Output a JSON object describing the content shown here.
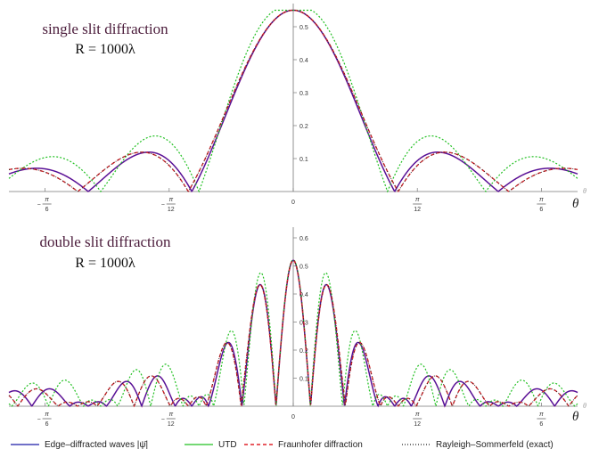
{
  "chart_data": [
    {
      "type": "line",
      "title": "single slit diffraction",
      "subtitle": "R = 1000λ",
      "xlabel": "θ",
      "xlabel_small": "θ",
      "x_ticks": [
        {
          "value": -0.5236,
          "num": "π",
          "den": "6",
          "neg": true
        },
        {
          "value": -0.2618,
          "num": "π",
          "den": "12",
          "neg": true
        },
        {
          "value": 0,
          "num": "0",
          "den": "",
          "neg": false
        },
        {
          "value": 0.2618,
          "num": "π",
          "den": "12",
          "neg": false
        },
        {
          "value": 0.5236,
          "num": "π",
          "den": "6",
          "neg": false
        }
      ],
      "y_ticks": [
        "0.1",
        "0.2",
        "0.3",
        "0.4",
        "0.5"
      ],
      "y_tick_values": [
        0.1,
        0.2,
        0.3,
        0.4,
        0.5
      ],
      "xlim": [
        -0.6,
        0.6
      ],
      "ylim": [
        0,
        0.55
      ],
      "model": "single",
      "peak": 0.55
    },
    {
      "type": "line",
      "title": "double slit diffraction",
      "subtitle": "R = 1000λ",
      "xlabel": "θ",
      "xlabel_small": "θ",
      "x_ticks": [
        {
          "value": -0.5236,
          "num": "π",
          "den": "6",
          "neg": true
        },
        {
          "value": -0.2618,
          "num": "π",
          "den": "12",
          "neg": true
        },
        {
          "value": 0,
          "num": "0",
          "den": "",
          "neg": false
        },
        {
          "value": 0.2618,
          "num": "π",
          "den": "12",
          "neg": false
        },
        {
          "value": 0.5236,
          "num": "π",
          "den": "6",
          "neg": false
        }
      ],
      "y_ticks": [
        "0.1",
        "0.2",
        "0.3",
        "0.4",
        "0.5",
        "0.6"
      ],
      "y_tick_values": [
        0.1,
        0.2,
        0.3,
        0.4,
        0.5,
        0.6
      ],
      "xlim": [
        -0.6,
        0.6
      ],
      "ylim": [
        0,
        0.67
      ],
      "model": "double",
      "peak": 0.52
    }
  ],
  "legend": [
    {
      "label": "Edge–diffracted waves |ψ̄|",
      "color": "#1a1aa6",
      "style": "solid"
    },
    {
      "label": "UTD",
      "color": "#22c022",
      "style": "solid"
    },
    {
      "label": "Fraunhofer diffraction",
      "color": "#e0242a",
      "style": "dashed"
    },
    {
      "label": "Rayleigh–Sommerfeld (exact)",
      "color": "#222222",
      "style": "dotted"
    }
  ],
  "colors": {
    "edge": "#1a1aa6",
    "utd": "#22c022",
    "fraunhofer": "#e0242a",
    "rayleigh": "#222222",
    "magenta": "#c0248f"
  }
}
